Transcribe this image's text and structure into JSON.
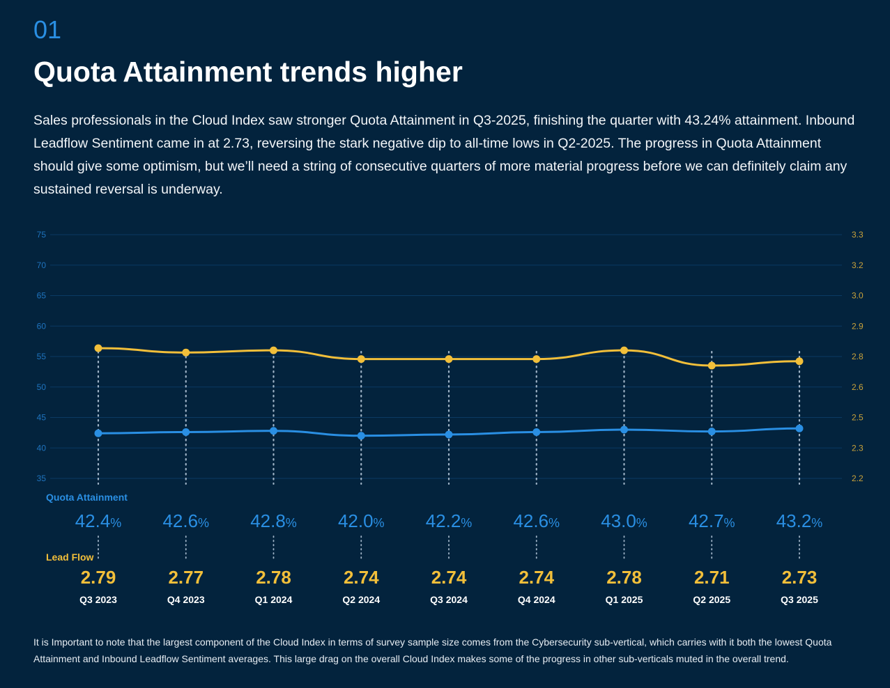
{
  "section_number": "01",
  "title": "Quota Attainment trends higher",
  "intro": "Sales professionals in the Cloud Index saw stronger Quota Attainment in Q3-2025, finishing the quarter with 43.24% attainment. Inbound Leadflow Sentiment came in at 2.73, reversing the stark negative dip to all-time lows in Q2-2025. The progress in Quota Attainment should give some optimism, but we’ll need a string of consecutive quarters of more material progress before we can definitely claim any sustained reversal is underway.",
  "footnote": "It is Important to note that the largest component of the Cloud Index in terms of survey sample size comes from the Cybersecurity sub-vertical, which carries with it both the lowest Quota Attainment and Inbound Leadflow Sentiment averages. This large drag on the overall Cloud Index makes some of the progress in other sub-verticals muted in the overall trend.",
  "colors": {
    "background": "#03233d",
    "quota": "#2a8fe3",
    "leadflow": "#f2bf3a",
    "grid": "#0b3a63"
  },
  "chart_data": {
    "type": "line",
    "categories": [
      "Q3 2023",
      "Q4 2023",
      "Q1 2024",
      "Q2 2024",
      "Q3 2024",
      "Q4 2024",
      "Q1 2025",
      "Q2 2025",
      "Q3 2025"
    ],
    "series": [
      {
        "name": "Quota Attainment",
        "axis": "left",
        "values": [
          42.4,
          42.6,
          42.8,
          42.0,
          42.2,
          42.6,
          43.0,
          42.7,
          43.2
        ],
        "labels": [
          "42.4",
          "42.6",
          "42.8",
          "42.0",
          "42.2",
          "42.6",
          "43.0",
          "42.7",
          "43.2"
        ],
        "unit": "%"
      },
      {
        "name": "Lead Flow",
        "axis": "right",
        "values": [
          2.79,
          2.77,
          2.78,
          2.74,
          2.74,
          2.74,
          2.78,
          2.71,
          2.73
        ],
        "labels": [
          "2.79",
          "2.77",
          "2.78",
          "2.74",
          "2.74",
          "2.74",
          "2.78",
          "2.71",
          "2.73"
        ]
      }
    ],
    "left_ticks": [
      "75",
      "70",
      "65",
      "60",
      "55",
      "50",
      "45",
      "40",
      "35"
    ],
    "right_ticks": [
      "3.3",
      "3.2",
      "3.0",
      "2.9",
      "2.8",
      "2.6",
      "2.5",
      "2.3",
      "2.2"
    ],
    "ylim_left": [
      35,
      75
    ],
    "grid": true
  }
}
